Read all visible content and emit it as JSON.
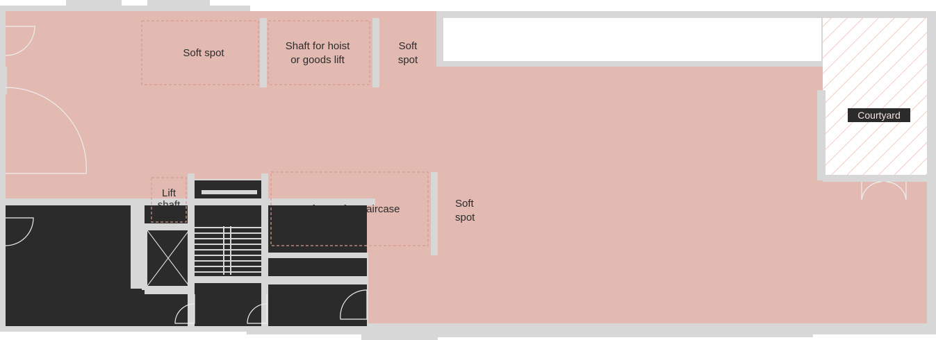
{
  "plan": {
    "colors": {
      "wall": "#d7d7d7",
      "floor": "#e2bab2",
      "core": "#2b2b2b",
      "soft_spot_outline": "#d79a8c",
      "hatch": "#f0b5a8",
      "label_text": "#2b2b2b",
      "courtyard_label_bg": "#2b2b2b",
      "courtyard_label_text": "#f2e4df"
    },
    "labels": {
      "soft_spot_top": "Soft spot",
      "shaft_line1": "Shaft for hoist",
      "shaft_line2": "or goods lift",
      "soft_spot_small_line1": "Soft",
      "soft_spot_small_line2": "spot",
      "courtyard": "Courtyard",
      "lift_line1": "Lift",
      "lift_line2": "shaft",
      "staircase": "Soft spot for staircase",
      "soft_spot_mid_line1": "Soft",
      "soft_spot_mid_line2": "spot"
    }
  }
}
